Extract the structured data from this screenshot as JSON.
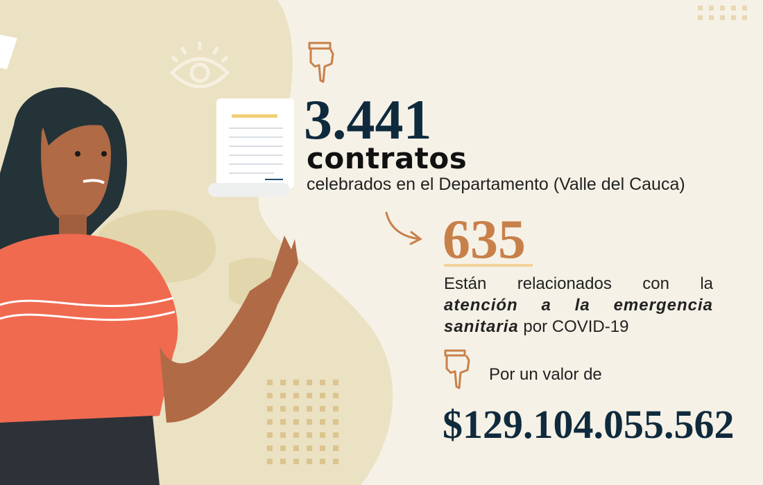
{
  "headline": {
    "count": "3.441",
    "label": "contratos",
    "subtitle": "celebrados en el Departamento (Valle del Cauca)"
  },
  "covid": {
    "count": "635",
    "text_before": "Están relacionados con la",
    "text_bold": "atención a la emergencia sanitaria",
    "text_after": "por COVID-19"
  },
  "value": {
    "label": "Por un valor de",
    "amount": "$129.104.055.562"
  },
  "icons": [
    "pointing-hand-icon",
    "eye-icon",
    "document-scroll-icon",
    "curved-arrow-icon"
  ],
  "colors": {
    "background": "#f5f1e6",
    "navy": "#0f2a3d",
    "accent_orange": "#c8804a",
    "shirt": "#f06a4f",
    "underline": "#f0d39a"
  }
}
